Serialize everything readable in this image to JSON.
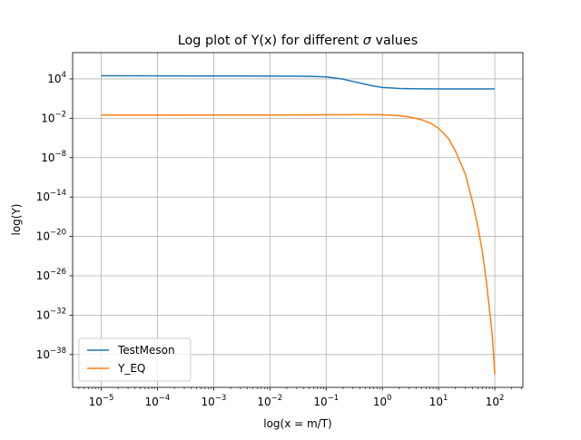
{
  "chart_data": {
    "type": "line",
    "title_prefix": "Log plot of Y(x) for different ",
    "title_symbol": "σ",
    "title_suffix": " values",
    "xlabel": "log(x = m/T)",
    "ylabel": "log(Y)",
    "x_scale": "log",
    "y_scale": "log",
    "xlim": [
      3.1e-06,
      316
    ],
    "ylim": [
      1e-43,
      100000000.0
    ],
    "x_ticks": [
      {
        "value": 1e-05,
        "base": "10",
        "exp": "−5"
      },
      {
        "value": 0.0001,
        "base": "10",
        "exp": "−4"
      },
      {
        "value": 0.001,
        "base": "10",
        "exp": "−3"
      },
      {
        "value": 0.01,
        "base": "10",
        "exp": "−2"
      },
      {
        "value": 0.1,
        "base": "10",
        "exp": "−1"
      },
      {
        "value": 1,
        "base": "10",
        "exp": "0"
      },
      {
        "value": 10,
        "base": "10",
        "exp": "1"
      },
      {
        "value": 100,
        "base": "10",
        "exp": "2"
      }
    ],
    "y_ticks": [
      {
        "value": 10000.0,
        "base": "10",
        "exp": "4"
      },
      {
        "value": 0.01,
        "base": "10",
        "exp": "−2"
      },
      {
        "value": 1e-08,
        "base": "10",
        "exp": "−8"
      },
      {
        "value": 1e-14,
        "base": "10",
        "exp": "−14"
      },
      {
        "value": 1e-20,
        "base": "10",
        "exp": "−20"
      },
      {
        "value": 1e-26,
        "base": "10",
        "exp": "−26"
      },
      {
        "value": 1e-32,
        "base": "10",
        "exp": "−32"
      },
      {
        "value": 1e-38,
        "base": "10",
        "exp": "−38"
      }
    ],
    "grid": true,
    "legend_position": "lower-left",
    "series": [
      {
        "name": "TestMeson",
        "color": "#1f77b4",
        "x": [
          1e-05,
          0.0001,
          0.001,
          0.01,
          0.03,
          0.06,
          0.1,
          0.15,
          0.2,
          0.3,
          0.5,
          0.7,
          1,
          1.5,
          2,
          3,
          5,
          10,
          30,
          100
        ],
        "y": [
          30000,
          29000,
          28000,
          27000,
          26000,
          24000,
          20000,
          13000,
          9000,
          4000,
          1500,
          800,
          500,
          400,
          350,
          320,
          310,
          300,
          300,
          300
        ]
      },
      {
        "name": "Y_EQ",
        "color": "#ff7f0e",
        "x": [
          1e-05,
          0.0001,
          0.001,
          0.01,
          0.05,
          0.1,
          0.3,
          1,
          2,
          3,
          5,
          7,
          10,
          15,
          20,
          30,
          40,
          50,
          60,
          70,
          80,
          90,
          100
        ],
        "y": [
          0.03,
          0.03,
          0.031,
          0.032,
          0.033,
          0.034,
          0.035,
          0.034,
          0.025,
          0.016,
          0.006,
          0.002,
          0.0003,
          8e-06,
          1e-07,
          3e-11,
          2e-15,
          3e-19,
          5e-23,
          3e-27,
          1e-31,
          1e-35,
          1e-41
        ]
      }
    ]
  }
}
